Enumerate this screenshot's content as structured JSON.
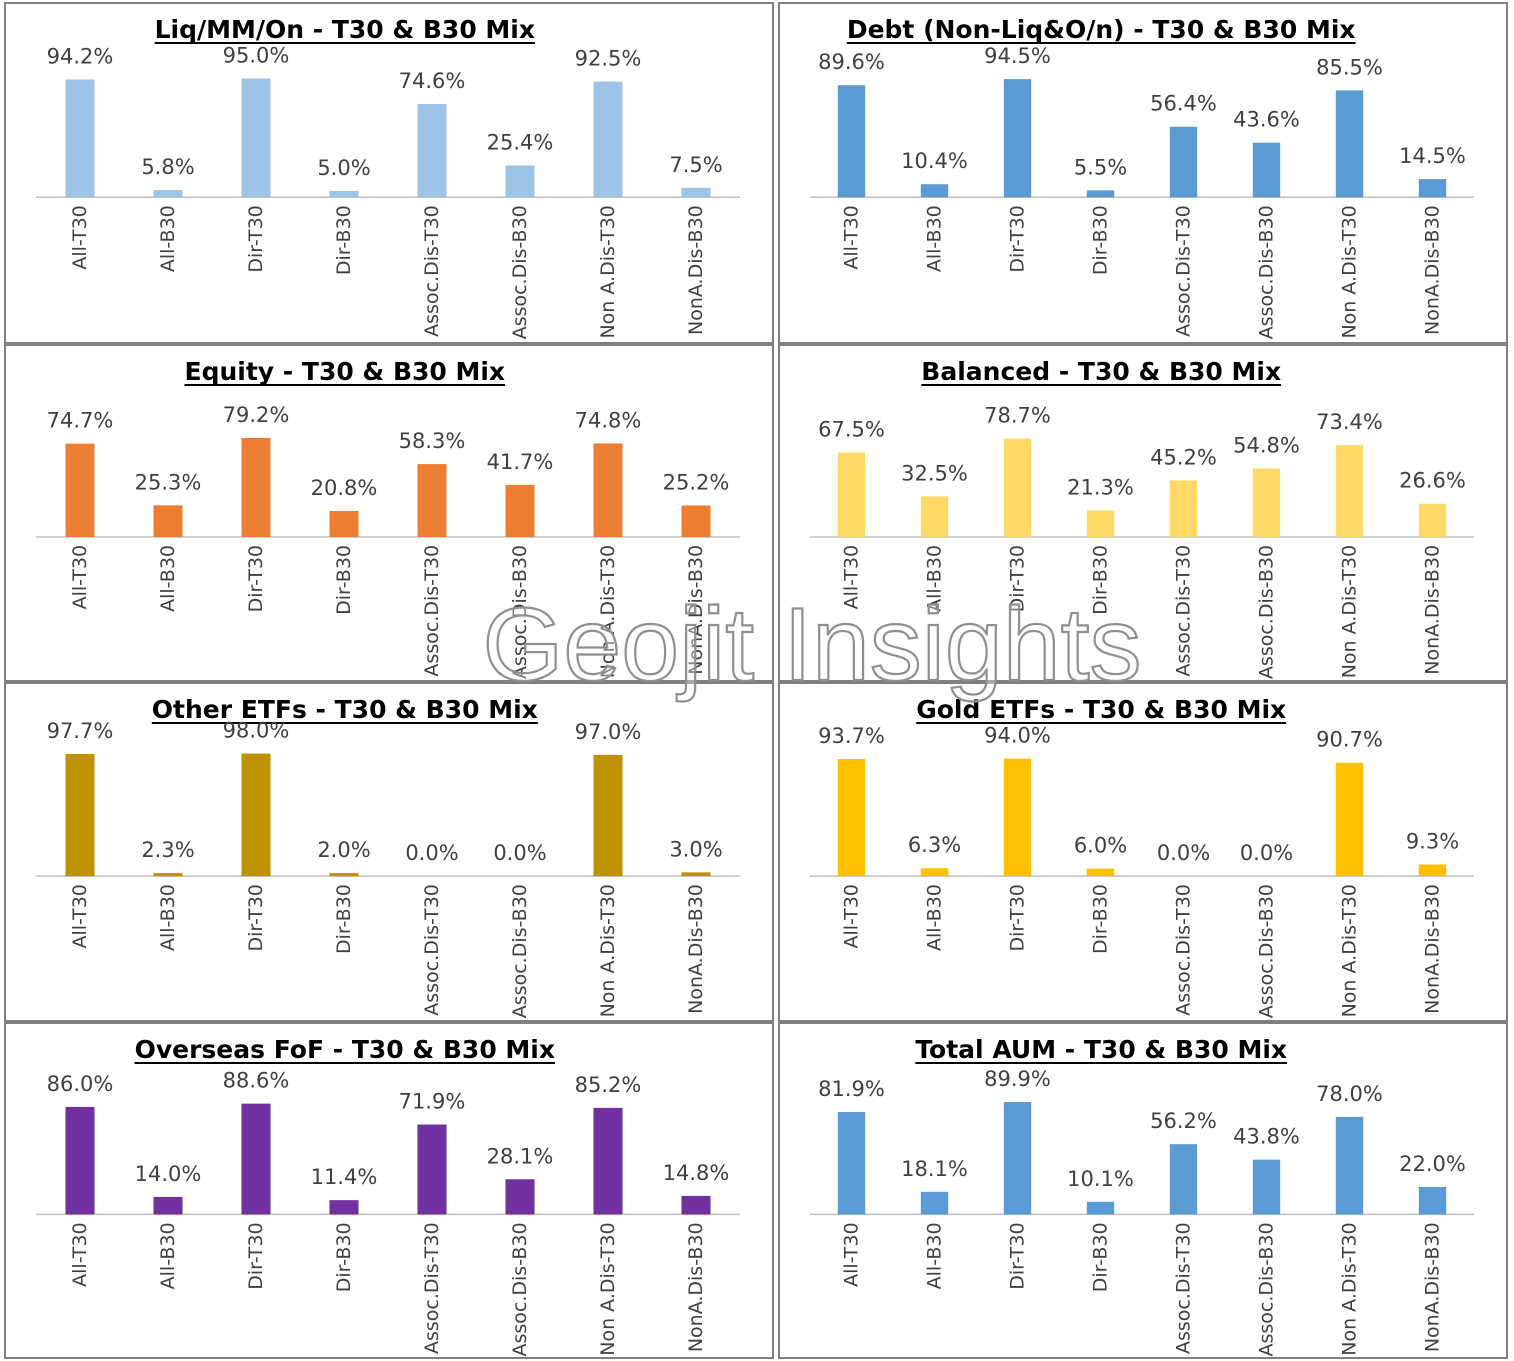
{
  "watermark": "Geojit Insights",
  "chart_data": [
    {
      "type": "bar",
      "title": "Liq/MM/On - T30 & B30 Mix",
      "color": "#9dc3e6",
      "categories": [
        "All-T30",
        "All-B30",
        "Dir-T30",
        "Dir-B30",
        "Assoc.Dis-T30",
        "Assoc.Dis-B30",
        "Non A.Dis-T30",
        "NonA.Dis-B30"
      ],
      "values": [
        94.2,
        5.8,
        95.0,
        5.0,
        74.6,
        25.4,
        92.5,
        7.5
      ],
      "labels": [
        "94.2%",
        "5.8%",
        "95.0%",
        "5.0%",
        "74.6%",
        "25.4%",
        "92.5%",
        "7.5%"
      ]
    },
    {
      "type": "bar",
      "title": "Debt (Non-Liq&O/n) - T30 & B30 Mix",
      "color": "#5b9bd5",
      "categories": [
        "All-T30",
        "All-B30",
        "Dir-T30",
        "Dir-B30",
        "Assoc.Dis-T30",
        "Assoc.Dis-B30",
        "Non A.Dis-T30",
        "NonA.Dis-B30"
      ],
      "values": [
        89.6,
        10.4,
        94.5,
        5.5,
        56.4,
        43.6,
        85.5,
        14.5
      ],
      "labels": [
        "89.6%",
        "10.4%",
        "94.5%",
        "5.5%",
        "56.4%",
        "43.6%",
        "85.5%",
        "14.5%"
      ]
    },
    {
      "type": "bar",
      "title": "Equity  - T30 & B30 Mix",
      "color": "#ed7d31",
      "categories": [
        "All-T30",
        "All-B30",
        "Dir-T30",
        "Dir-B30",
        "Assoc.Dis-T30",
        "Assoc.Dis-B30",
        "Non A.Dis-T30",
        "NonA.Dis-B30"
      ],
      "values": [
        74.7,
        25.3,
        79.2,
        20.8,
        58.3,
        41.7,
        74.8,
        25.2
      ],
      "labels": [
        "74.7%",
        "25.3%",
        "79.2%",
        "20.8%",
        "58.3%",
        "41.7%",
        "74.8%",
        "25.2%"
      ]
    },
    {
      "type": "bar",
      "title": "Balanced  - T30 & B30 Mix",
      "color": "#ffd966",
      "categories": [
        "All-T30",
        "All-B30",
        "Dir-T30",
        "Dir-B30",
        "Assoc.Dis-T30",
        "Assoc.Dis-B30",
        "Non A.Dis-T30",
        "NonA.Dis-B30"
      ],
      "values": [
        67.5,
        32.5,
        78.7,
        21.3,
        45.2,
        54.8,
        73.4,
        26.6
      ],
      "labels": [
        "67.5%",
        "32.5%",
        "78.7%",
        "21.3%",
        "45.2%",
        "54.8%",
        "73.4%",
        "26.6%"
      ]
    },
    {
      "type": "bar",
      "title": "Other ETFs - T30 & B30 Mix",
      "color": "#bf9000",
      "categories": [
        "All-T30",
        "All-B30",
        "Dir-T30",
        "Dir-B30",
        "Assoc.Dis-T30",
        "Assoc.Dis-B30",
        "Non A.Dis-T30",
        "NonA.Dis-B30"
      ],
      "values": [
        97.7,
        2.3,
        98.0,
        2.0,
        0.0,
        0.0,
        97.0,
        3.0
      ],
      "labels": [
        "97.7%",
        "2.3%",
        "98.0%",
        "2.0%",
        "0.0%",
        "0.0%",
        "97.0%",
        "3.0%"
      ]
    },
    {
      "type": "bar",
      "title": "Gold ETFs - T30 & B30 Mix",
      "color": "#ffc000",
      "categories": [
        "All-T30",
        "All-B30",
        "Dir-T30",
        "Dir-B30",
        "Assoc.Dis-T30",
        "Assoc.Dis-B30",
        "Non A.Dis-T30",
        "NonA.Dis-B30"
      ],
      "values": [
        93.7,
        6.3,
        94.0,
        6.0,
        0.0,
        0.0,
        90.7,
        9.3
      ],
      "labels": [
        "93.7%",
        "6.3%",
        "94.0%",
        "6.0%",
        "0.0%",
        "0.0%",
        "90.7%",
        "9.3%"
      ]
    },
    {
      "type": "bar",
      "title": "Overseas FoF - T30 & B30 Mix",
      "color": "#7030a0",
      "categories": [
        "All-T30",
        "All-B30",
        "Dir-T30",
        "Dir-B30",
        "Assoc.Dis-T30",
        "Assoc.Dis-B30",
        "Non A.Dis-T30",
        "NonA.Dis-B30"
      ],
      "values": [
        86.0,
        14.0,
        88.6,
        11.4,
        71.9,
        28.1,
        85.2,
        14.8
      ],
      "labels": [
        "86.0%",
        "14.0%",
        "88.6%",
        "11.4%",
        "71.9%",
        "28.1%",
        "85.2%",
        "14.8%"
      ]
    },
    {
      "type": "bar",
      "title": "Total AUM - T30 & B30 Mix",
      "color": "#5b9bd5",
      "categories": [
        "All-T30",
        "All-B30",
        "Dir-T30",
        "Dir-B30",
        "Assoc.Dis-T30",
        "Assoc.Dis-B30",
        "Non A.Dis-T30",
        "NonA.Dis-B30"
      ],
      "values": [
        81.9,
        18.1,
        89.9,
        10.1,
        56.2,
        43.8,
        78.0,
        22.0
      ],
      "labels": [
        "81.9%",
        "18.1%",
        "89.9%",
        "10.1%",
        "56.2%",
        "43.8%",
        "78.0%",
        "22.0%"
      ]
    }
  ]
}
